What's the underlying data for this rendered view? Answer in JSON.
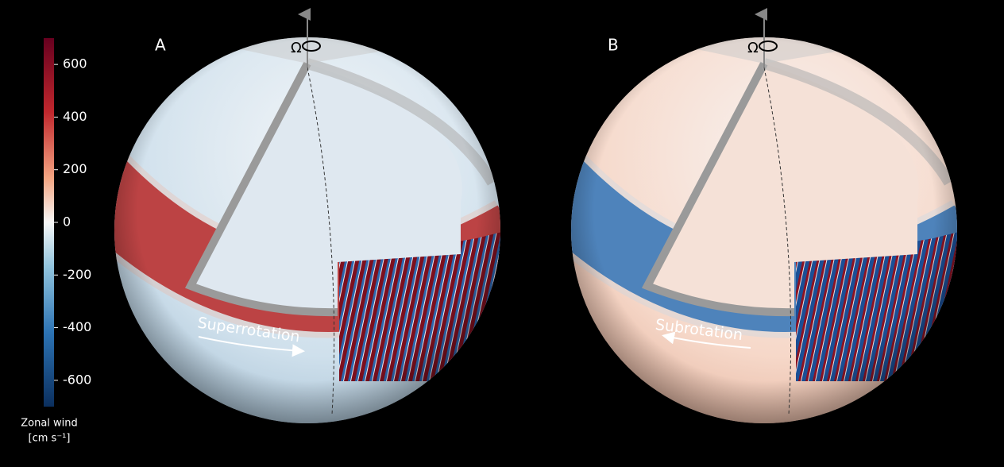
{
  "colorbar": {
    "label": "Zonal wind",
    "unit": "[cm s⁻¹]",
    "lim": [
      -700,
      700
    ],
    "ticks": [
      600,
      400,
      200,
      0,
      -200,
      -400,
      -600
    ]
  },
  "panels": [
    {
      "label": "A",
      "rotation_symbol": "Ω",
      "annotation": "Superrotation"
    },
    {
      "label": "B",
      "rotation_symbol": "Ω",
      "annotation": "Subrotation"
    }
  ]
}
